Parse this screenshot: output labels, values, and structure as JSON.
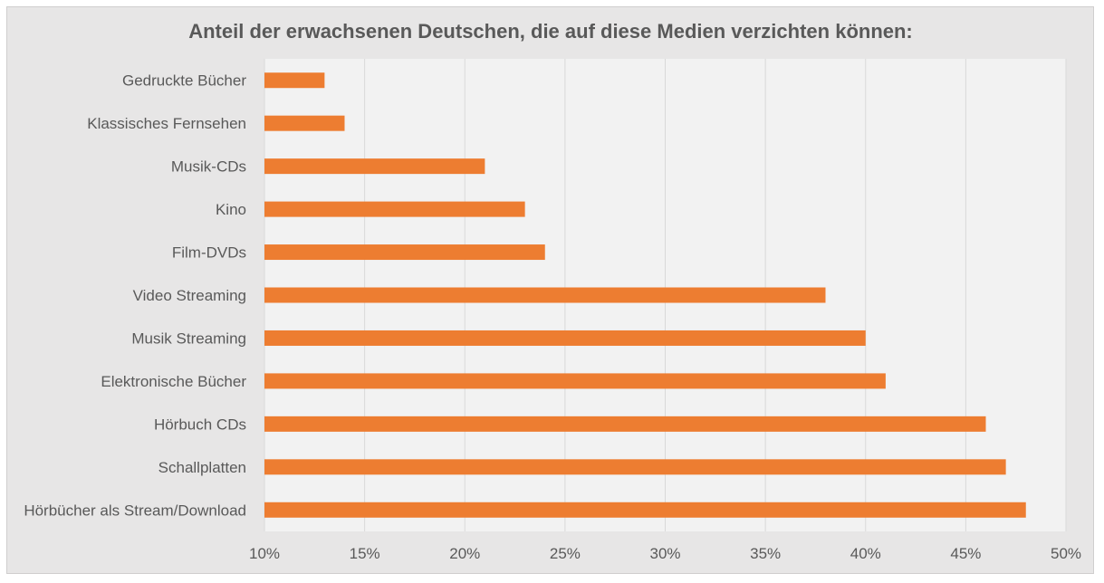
{
  "chart_data": {
    "type": "bar",
    "orientation": "horizontal",
    "title": "Anteil der erwachsenen Deutschen, die auf diese Medien verzichten können:",
    "categories": [
      "Gedruckte Bücher",
      "Klassisches Fernsehen",
      "Musik-CDs",
      "Kino",
      "Film-DVDs",
      "Video Streaming",
      "Musik Streaming",
      "Elektronische Bücher",
      "Hörbuch CDs",
      "Schallplatten",
      "Hörbücher als Stream/Download"
    ],
    "values": [
      13,
      14,
      21,
      23,
      24,
      38,
      40,
      41,
      46,
      47,
      48
    ],
    "xlim": [
      10,
      50
    ],
    "xticks": [
      10,
      15,
      20,
      25,
      30,
      35,
      40,
      45,
      50
    ],
    "tick_labels": [
      "10%",
      "15%",
      "20%",
      "25%",
      "30%",
      "35%",
      "40%",
      "45%",
      "50%"
    ],
    "xlabel": "",
    "ylabel": "",
    "grid": true,
    "legend": "none",
    "bar_color": "#ed7d31",
    "background_color": "#e7e6e6",
    "plot_background_color": "#f2f2f2"
  }
}
